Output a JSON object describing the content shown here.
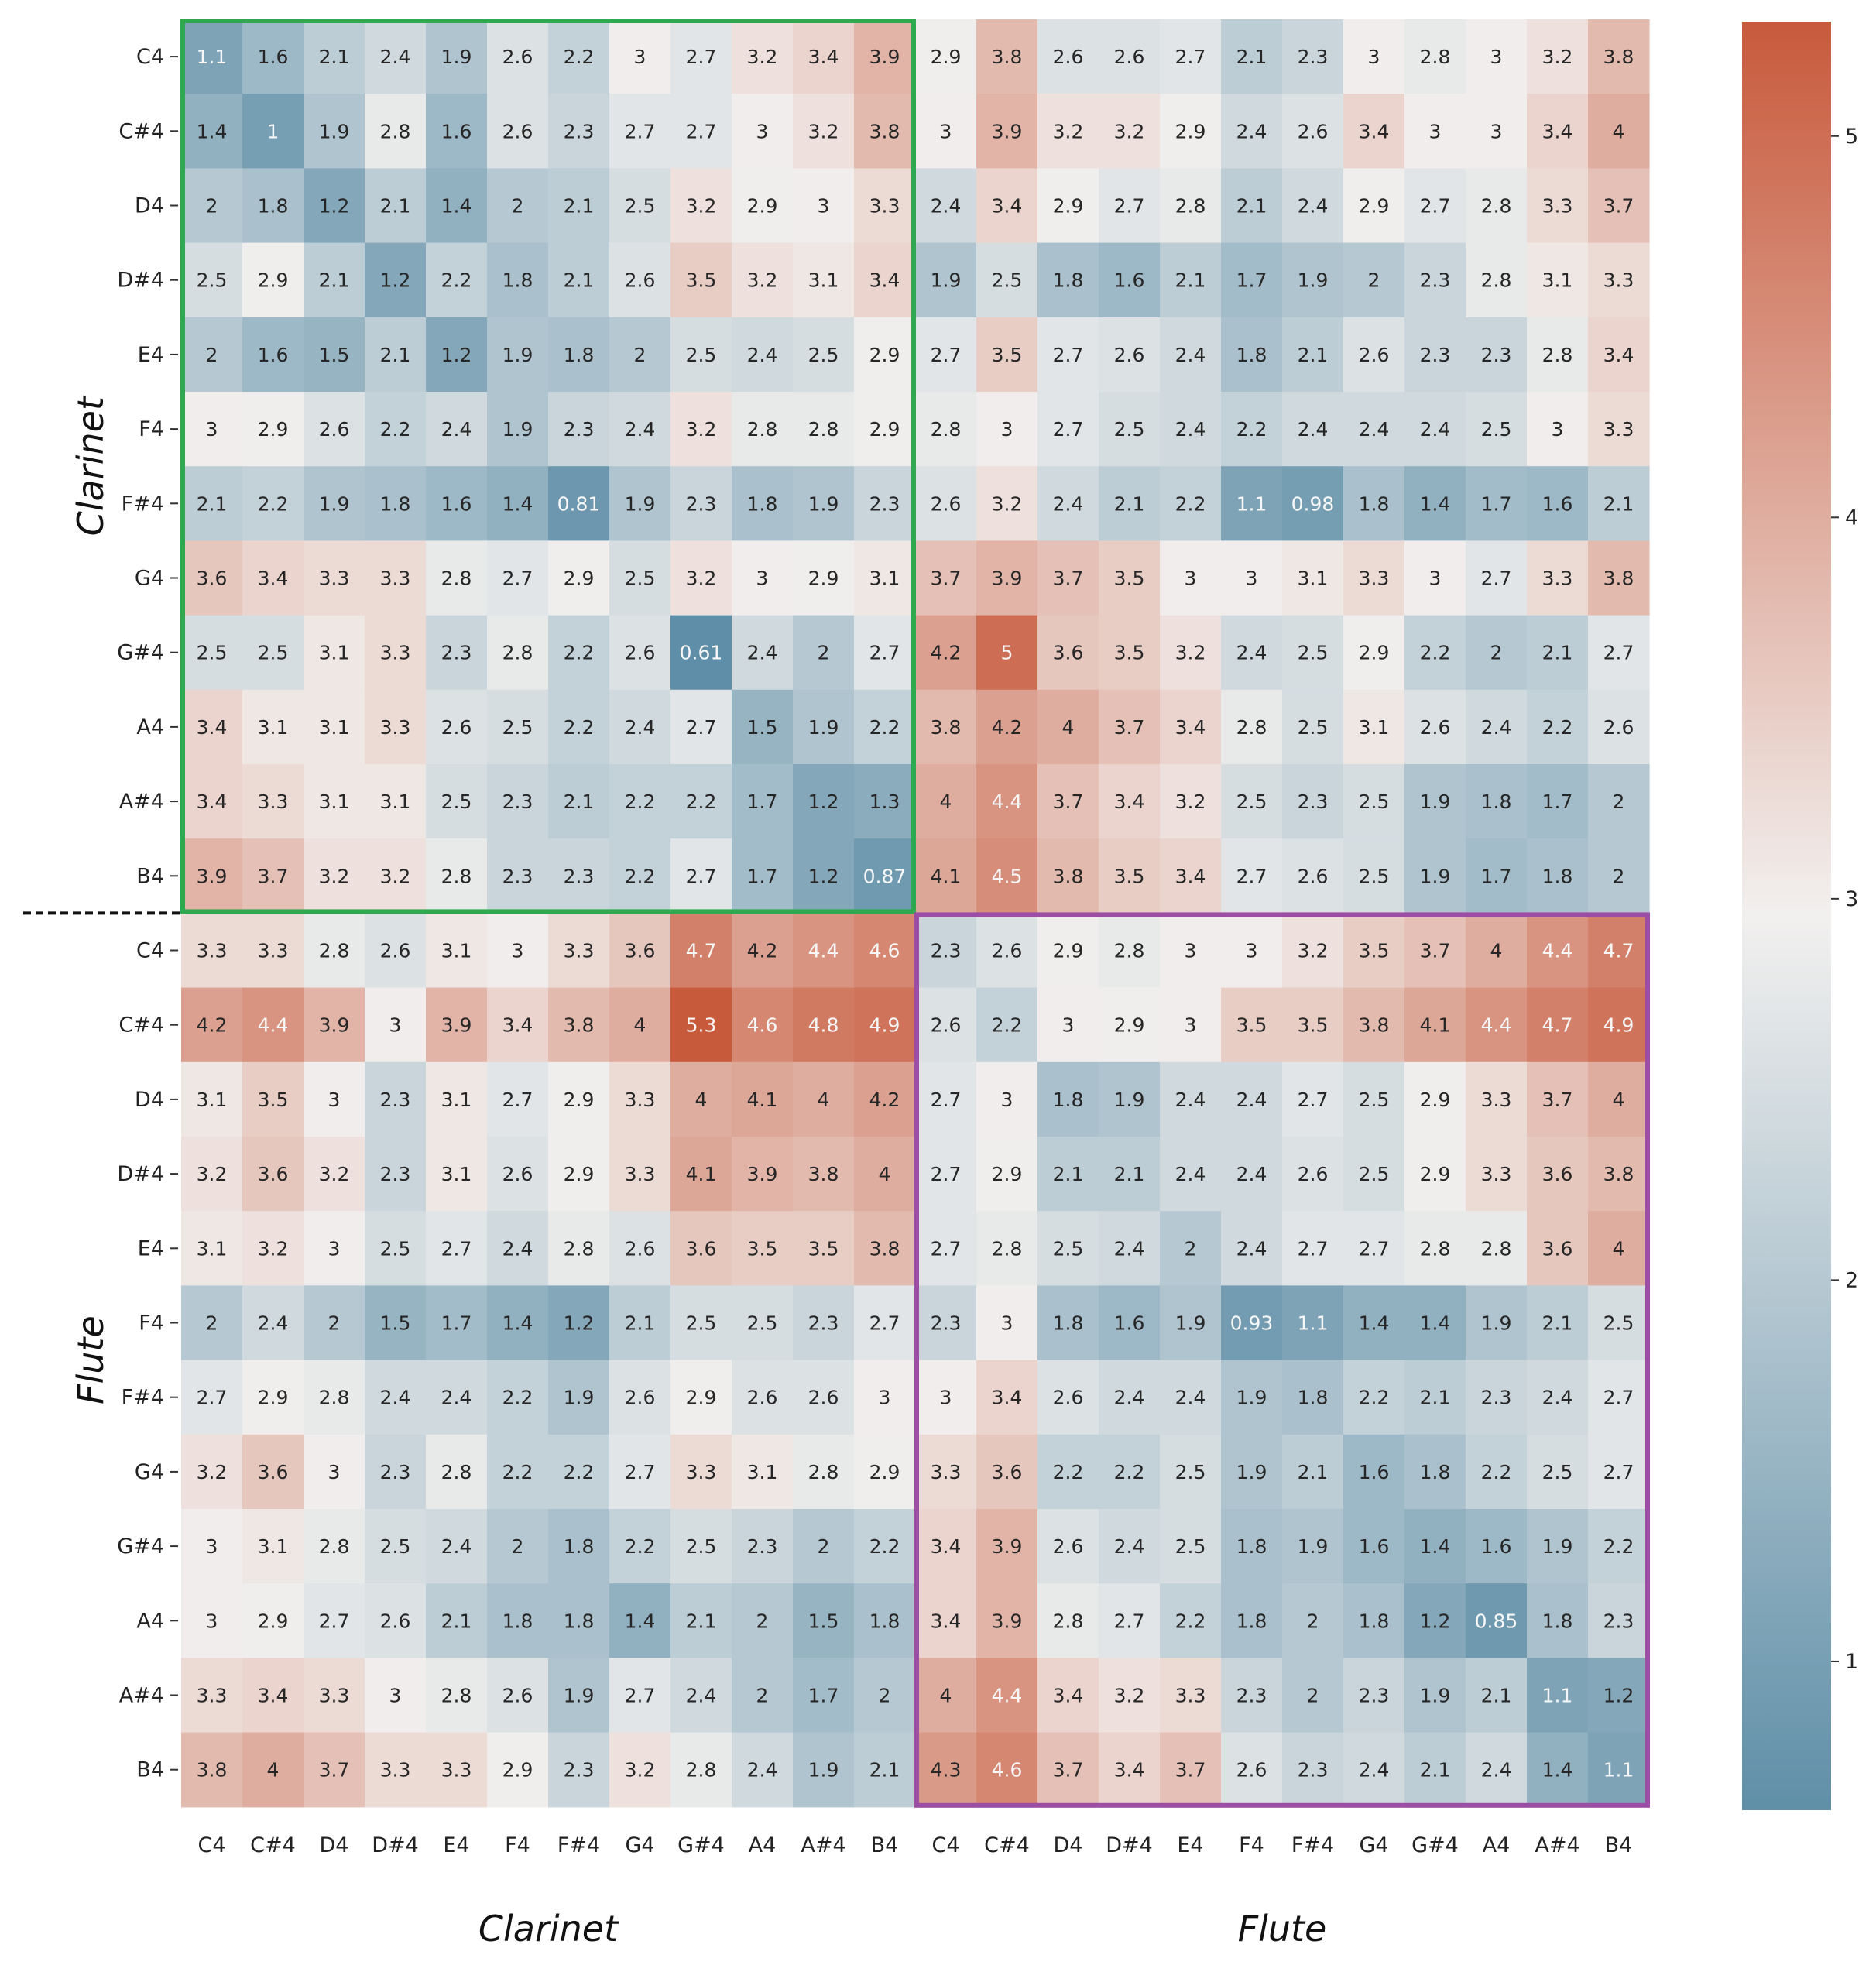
{
  "chart_data": {
    "type": "heatmap",
    "title": "",
    "xlabel": "",
    "ylabel": "",
    "tick_labels": [
      "C4",
      "C#4",
      "D4",
      "D#4",
      "E4",
      "F4",
      "F#4",
      "G4",
      "G#4",
      "A4",
      "A#4",
      "B4",
      "C4",
      "C#4",
      "D4",
      "D#4",
      "E4",
      "F4",
      "F#4",
      "G4",
      "G#4",
      "A4",
      "A#4",
      "B4"
    ],
    "groups": [
      "Clarinet",
      "Flute"
    ],
    "values": [
      [
        1.1,
        1.6,
        2.1,
        2.4,
        1.9,
        2.6,
        2.2,
        3,
        2.7,
        3.2,
        3.4,
        3.9,
        2.9,
        3.8,
        2.6,
        2.6,
        2.7,
        2.1,
        2.3,
        3,
        2.8,
        3,
        3.2,
        3.8
      ],
      [
        1.4,
        1,
        1.9,
        2.8,
        1.6,
        2.6,
        2.3,
        2.7,
        2.7,
        3,
        3.2,
        3.8,
        3,
        3.9,
        3.2,
        3.2,
        2.9,
        2.4,
        2.6,
        3.4,
        3,
        3,
        3.4,
        4
      ],
      [
        2,
        1.8,
        1.2,
        2.1,
        1.4,
        2,
        2.1,
        2.5,
        3.2,
        2.9,
        3,
        3.3,
        2.4,
        3.4,
        2.9,
        2.7,
        2.8,
        2.1,
        2.4,
        2.9,
        2.7,
        2.8,
        3.3,
        3.7
      ],
      [
        2.5,
        2.9,
        2.1,
        1.2,
        2.2,
        1.8,
        2.1,
        2.6,
        3.5,
        3.2,
        3.1,
        3.4,
        1.9,
        2.5,
        1.8,
        1.6,
        2.1,
        1.7,
        1.9,
        2,
        2.3,
        2.8,
        3.1,
        3.3
      ],
      [
        2,
        1.6,
        1.5,
        2.1,
        1.2,
        1.9,
        1.8,
        2,
        2.5,
        2.4,
        2.5,
        2.9,
        2.7,
        3.5,
        2.7,
        2.6,
        2.4,
        1.8,
        2.1,
        2.6,
        2.3,
        2.3,
        2.8,
        3.4
      ],
      [
        3,
        2.9,
        2.6,
        2.2,
        2.4,
        1.9,
        2.3,
        2.4,
        3.2,
        2.8,
        2.8,
        2.9,
        2.8,
        3,
        2.7,
        2.5,
        2.4,
        2.2,
        2.4,
        2.4,
        2.4,
        2.5,
        3,
        3.3
      ],
      [
        2.1,
        2.2,
        1.9,
        1.8,
        1.6,
        1.4,
        0.81,
        1.9,
        2.3,
        1.8,
        1.9,
        2.3,
        2.6,
        3.2,
        2.4,
        2.1,
        2.2,
        1.1,
        0.98,
        1.8,
        1.4,
        1.7,
        1.6,
        2.1
      ],
      [
        3.6,
        3.4,
        3.3,
        3.3,
        2.8,
        2.7,
        2.9,
        2.5,
        3.2,
        3,
        2.9,
        3.1,
        3.7,
        3.9,
        3.7,
        3.5,
        3,
        3,
        3.1,
        3.3,
        3,
        2.7,
        3.3,
        3.8
      ],
      [
        2.5,
        2.5,
        3.1,
        3.3,
        2.3,
        2.8,
        2.2,
        2.6,
        0.61,
        2.4,
        2,
        2.7,
        4.2,
        5,
        3.6,
        3.5,
        3.2,
        2.4,
        2.5,
        2.9,
        2.2,
        2,
        2.1,
        2.7
      ],
      [
        3.4,
        3.1,
        3.1,
        3.3,
        2.6,
        2.5,
        2.2,
        2.4,
        2.7,
        1.5,
        1.9,
        2.2,
        3.8,
        4.2,
        4,
        3.7,
        3.4,
        2.8,
        2.5,
        3.1,
        2.6,
        2.4,
        2.2,
        2.6
      ],
      [
        3.4,
        3.3,
        3.1,
        3.1,
        2.5,
        2.3,
        2.1,
        2.2,
        2.2,
        1.7,
        1.2,
        1.3,
        4,
        4.4,
        3.7,
        3.4,
        3.2,
        2.5,
        2.3,
        2.5,
        1.9,
        1.8,
        1.7,
        2
      ],
      [
        3.9,
        3.7,
        3.2,
        3.2,
        2.8,
        2.3,
        2.3,
        2.2,
        2.7,
        1.7,
        1.2,
        0.87,
        4.1,
        4.5,
        3.8,
        3.5,
        3.4,
        2.7,
        2.6,
        2.5,
        1.9,
        1.7,
        1.8,
        2
      ],
      [
        3.3,
        3.3,
        2.8,
        2.6,
        3.1,
        3,
        3.3,
        3.6,
        4.7,
        4.2,
        4.4,
        4.6,
        2.3,
        2.6,
        2.9,
        2.8,
        3,
        3,
        3.2,
        3.5,
        3.7,
        4,
        4.4,
        4.7
      ],
      [
        4.2,
        4.4,
        3.9,
        3,
        3.9,
        3.4,
        3.8,
        4,
        5.3,
        4.6,
        4.8,
        4.9,
        2.6,
        2.2,
        3,
        2.9,
        3,
        3.5,
        3.5,
        3.8,
        4.1,
        4.4,
        4.7,
        4.9
      ],
      [
        3.1,
        3.5,
        3,
        2.3,
        3.1,
        2.7,
        2.9,
        3.3,
        4,
        4.1,
        4,
        4.2,
        2.7,
        3,
        1.8,
        1.9,
        2.4,
        2.4,
        2.7,
        2.5,
        2.9,
        3.3,
        3.7,
        4
      ],
      [
        3.2,
        3.6,
        3.2,
        2.3,
        3.1,
        2.6,
        2.9,
        3.3,
        4.1,
        3.9,
        3.8,
        4,
        2.7,
        2.9,
        2.1,
        2.1,
        2.4,
        2.4,
        2.6,
        2.5,
        2.9,
        3.3,
        3.6,
        3.8
      ],
      [
        3.1,
        3.2,
        3,
        2.5,
        2.7,
        2.4,
        2.8,
        2.6,
        3.6,
        3.5,
        3.5,
        3.8,
        2.7,
        2.8,
        2.5,
        2.4,
        2,
        2.4,
        2.7,
        2.7,
        2.8,
        2.8,
        3.6,
        4
      ],
      [
        2,
        2.4,
        2,
        1.5,
        1.7,
        1.4,
        1.2,
        2.1,
        2.5,
        2.5,
        2.3,
        2.7,
        2.3,
        3,
        1.8,
        1.6,
        1.9,
        0.93,
        1.1,
        1.4,
        1.4,
        1.9,
        2.1,
        2.5
      ],
      [
        2.7,
        2.9,
        2.8,
        2.4,
        2.4,
        2.2,
        1.9,
        2.6,
        2.9,
        2.6,
        2.6,
        3,
        3,
        3.4,
        2.6,
        2.4,
        2.4,
        1.9,
        1.8,
        2.2,
        2.1,
        2.3,
        2.4,
        2.7
      ],
      [
        3.2,
        3.6,
        3,
        2.3,
        2.8,
        2.2,
        2.2,
        2.7,
        3.3,
        3.1,
        2.8,
        2.9,
        3.3,
        3.6,
        2.2,
        2.2,
        2.5,
        1.9,
        2.1,
        1.6,
        1.8,
        2.2,
        2.5,
        2.7
      ],
      [
        3,
        3.1,
        2.8,
        2.5,
        2.4,
        2,
        1.8,
        2.2,
        2.5,
        2.3,
        2,
        2.2,
        3.4,
        3.9,
        2.6,
        2.4,
        2.5,
        1.8,
        1.9,
        1.6,
        1.4,
        1.6,
        1.9,
        2.2
      ],
      [
        3,
        2.9,
        2.7,
        2.6,
        2.1,
        1.8,
        1.8,
        1.4,
        2.1,
        2,
        1.5,
        1.8,
        3.4,
        3.9,
        2.8,
        2.7,
        2.2,
        1.8,
        2,
        1.8,
        1.2,
        0.85,
        1.8,
        2.3
      ],
      [
        3.3,
        3.4,
        3.3,
        3,
        2.8,
        2.6,
        1.9,
        2.7,
        2.4,
        2,
        1.7,
        2,
        4,
        4.4,
        3.4,
        3.2,
        3.3,
        2.3,
        2,
        2.3,
        1.9,
        2.1,
        1.1,
        1.2
      ],
      [
        3.8,
        4,
        3.7,
        3.3,
        3.3,
        2.9,
        2.3,
        3.2,
        2.8,
        2.4,
        1.9,
        2.1,
        4.3,
        4.6,
        3.7,
        3.4,
        3.7,
        2.6,
        2.3,
        2.4,
        2.1,
        2.4,
        1.4,
        1.1
      ]
    ],
    "colorbar": {
      "min": 0.61,
      "max": 5.3,
      "ticks": [
        1,
        2,
        3,
        4,
        5
      ]
    },
    "colors": {
      "low": "#5f8fa8",
      "mid": "#f2f0ef",
      "high": "#c85a3c"
    },
    "highlight_boxes": [
      {
        "group": "Clarinet",
        "color": "#2fa84f"
      },
      {
        "group": "Flute",
        "color": "#9b4ea3"
      }
    ],
    "grid": false,
    "legend": "colorbar-right"
  }
}
